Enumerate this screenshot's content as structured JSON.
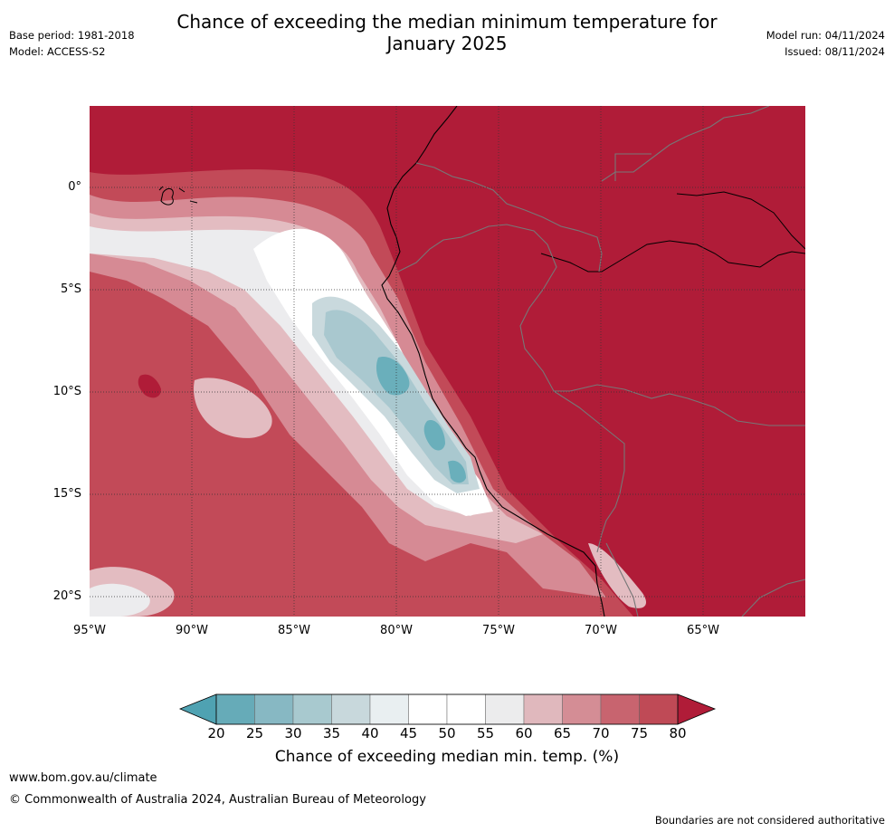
{
  "header": {
    "title_line1": "Chance of exceeding the median minimum temperature for",
    "title_line2": "January 2025",
    "base_period": "Base period: 1981-2018",
    "model": "Model: ACCESS-S2",
    "model_run": "Model run: 04/11/2024",
    "issued": "Issued: 08/11/2024"
  },
  "map": {
    "lat_labels": [
      "0°",
      "5°S",
      "10°S",
      "15°S",
      "20°S"
    ],
    "lon_labels": [
      "95°W",
      "90°W",
      "85°W",
      "80°W",
      "75°W",
      "70°W",
      "65°W"
    ],
    "colors": {
      "land": "#b01c38",
      "ocean_warm": "#c24a58",
      "ocean_mid": "#d68a94",
      "ocean_light": "#e3bcc1",
      "neutral": "#ececee",
      "white": "#ffffff",
      "cool_light": "#c9d9dd",
      "cool_mid": "#a9c8cf",
      "cool_deep": "#6aafbb"
    }
  },
  "colorbar": {
    "labels": [
      "20",
      "25",
      "30",
      "35",
      "40",
      "45",
      "50",
      "55",
      "60",
      "65",
      "70",
      "75",
      "80"
    ],
    "colors": [
      "#66abb8",
      "#87b8c3",
      "#a8c9cf",
      "#c8d8dc",
      "#e9eff1",
      "#ffffff",
      "#ffffff",
      "#ececed",
      "#e0b8bd",
      "#d48d95",
      "#c8646f",
      "#bf4a56"
    ],
    "low_color": "#4fa2b2",
    "high_color": "#b01c38",
    "title": "Chance of exceeding median min. temp. (%)"
  },
  "footer": {
    "url": "www.bom.gov.au/climate",
    "copyright": "© Commonwealth of Australia 2024, Australian Bureau of Meteorology",
    "disclaimer": "Boundaries are not considered authoritative"
  }
}
